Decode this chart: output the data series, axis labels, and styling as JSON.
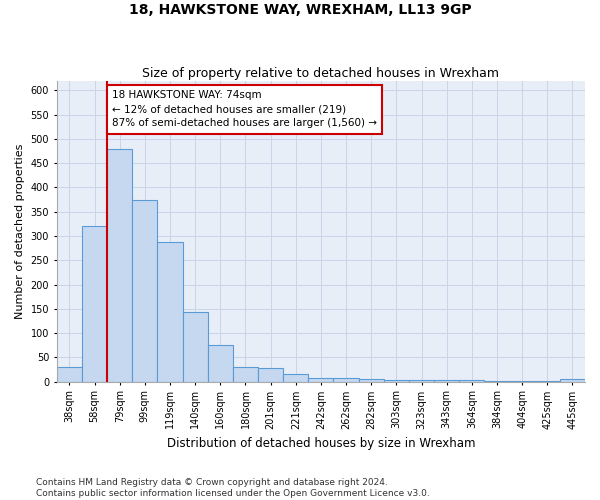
{
  "title": "18, HAWKSTONE WAY, WREXHAM, LL13 9GP",
  "subtitle": "Size of property relative to detached houses in Wrexham",
  "xlabel": "Distribution of detached houses by size in Wrexham",
  "ylabel": "Number of detached properties",
  "categories": [
    "38sqm",
    "58sqm",
    "79sqm",
    "99sqm",
    "119sqm",
    "140sqm",
    "160sqm",
    "180sqm",
    "201sqm",
    "221sqm",
    "242sqm",
    "262sqm",
    "282sqm",
    "303sqm",
    "323sqm",
    "343sqm",
    "364sqm",
    "384sqm",
    "404sqm",
    "425sqm",
    "445sqm"
  ],
  "values": [
    30,
    320,
    480,
    375,
    288,
    143,
    75,
    30,
    28,
    15,
    8,
    8,
    5,
    4,
    4,
    4,
    4,
    1,
    1,
    1,
    5
  ],
  "bar_color": "#c5d8f0",
  "bar_edge_color": "#5b9bd5",
  "bar_edge_width": 0.8,
  "highlight_line_color": "#cc0000",
  "annotation_line1": "18 HAWKSTONE WAY: 74sqm",
  "annotation_line2": "← 12% of detached houses are smaller (219)",
  "annotation_line3": "87% of semi-detached houses are larger (1,560) →",
  "annotation_box_edgecolor": "#cc0000",
  "annotation_box_facecolor": "white",
  "ylim": [
    0,
    620
  ],
  "yticks": [
    0,
    50,
    100,
    150,
    200,
    250,
    300,
    350,
    400,
    450,
    500,
    550,
    600
  ],
  "grid_color": "#c8d4e8",
  "plot_bg_color": "#e8eef8",
  "footer_line1": "Contains HM Land Registry data © Crown copyright and database right 2024.",
  "footer_line2": "Contains public sector information licensed under the Open Government Licence v3.0.",
  "title_fontsize": 10,
  "subtitle_fontsize": 9,
  "tick_fontsize": 7,
  "xlabel_fontsize": 8.5,
  "ylabel_fontsize": 8,
  "annotation_fontsize": 7.5,
  "footer_fontsize": 6.5
}
